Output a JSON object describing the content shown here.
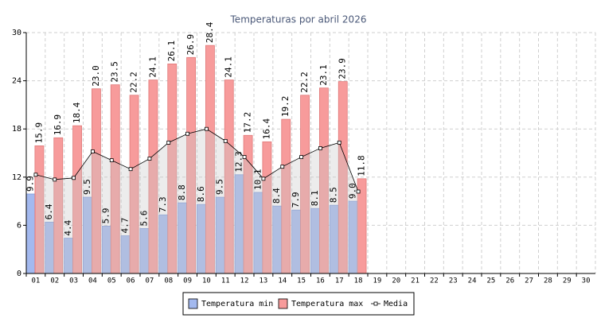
{
  "chart_data": {
    "type": "bar",
    "title": "Temperaturas por abril 2026",
    "categories": [
      "01",
      "02",
      "03",
      "04",
      "05",
      "06",
      "07",
      "08",
      "09",
      "10",
      "11",
      "12",
      "13",
      "14",
      "15",
      "16",
      "17",
      "18",
      "19",
      "20",
      "21",
      "22",
      "23",
      "24",
      "25",
      "26",
      "27",
      "28",
      "29",
      "30"
    ],
    "series": [
      {
        "name": "Temperatura min",
        "color": "#a3b9ef",
        "values": [
          9.9,
          6.4,
          4.4,
          9.5,
          5.9,
          4.7,
          5.6,
          7.3,
          8.8,
          8.6,
          9.5,
          12.3,
          10.1,
          8.4,
          7.9,
          8.1,
          8.5,
          9,
          null,
          null,
          null,
          null,
          null,
          null,
          null,
          null,
          null,
          null,
          null,
          null
        ],
        "value_labels": [
          "9.9",
          "6.4",
          "4.4",
          "9.5",
          "5.9",
          "4.7",
          "5.6",
          "7.3",
          "8.8",
          "8.6",
          "9.5",
          "12.3",
          "10.1",
          "8.4",
          "7.9",
          "8.1",
          "8.5",
          "9.0",
          null,
          null,
          null,
          null,
          null,
          null,
          null,
          null,
          null,
          null,
          null,
          null
        ]
      },
      {
        "name": "Temperatura max",
        "color": "#f79b9b",
        "values": [
          15.9,
          16.9,
          18.4,
          23,
          23.5,
          22.2,
          24.1,
          26.1,
          26.9,
          28.4,
          24.1,
          17.2,
          16.4,
          19.2,
          22.2,
          23.1,
          23.9,
          11.8,
          null,
          null,
          null,
          null,
          null,
          null,
          null,
          null,
          null,
          null,
          null,
          null
        ],
        "value_labels": [
          "15.9",
          "16.9",
          "18.4",
          "23.0",
          "23.5",
          "22.2",
          "24.1",
          "26.1",
          "26.9",
          "28.4",
          "24.1",
          "17.2",
          "16.4",
          "19.2",
          "22.2",
          "23.1",
          "23.9",
          "11.8",
          null,
          null,
          null,
          null,
          null,
          null,
          null,
          null,
          null,
          null,
          null,
          null
        ]
      },
      {
        "name": "Media",
        "type": "line",
        "color": "#000000",
        "values": [
          12.3,
          11.7,
          11.9,
          15.2,
          14.1,
          13.0,
          14.3,
          16.3,
          17.4,
          18.0,
          16.5,
          14.5,
          11.8,
          13.3,
          14.5,
          15.6,
          16.3,
          10.2,
          null,
          null,
          null,
          null,
          null,
          null,
          null,
          null,
          null,
          null,
          null,
          null
        ]
      }
    ],
    "ylim": [
      0,
      30
    ],
    "yticks": [
      0,
      6,
      12,
      18,
      24,
      30
    ],
    "grid": true
  }
}
